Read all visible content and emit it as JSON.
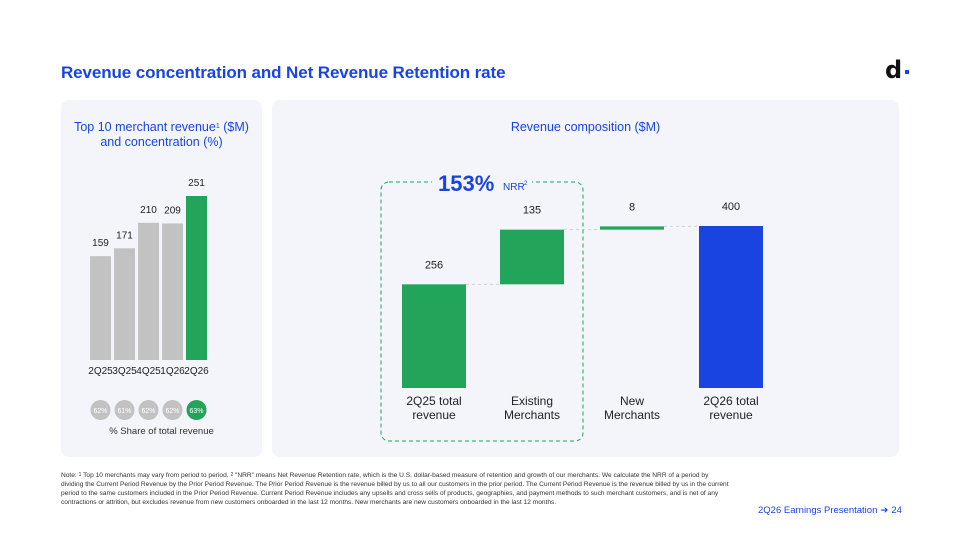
{
  "title": "Revenue concentration and Net Revenue Retention rate",
  "logo": {
    "letter": "d",
    "icon": "dlocal-logo-icon"
  },
  "colors": {
    "accent": "#1a44e0",
    "green": "#22a45a",
    "gray": "#c2c2c2",
    "dashed": "#22a45a"
  },
  "chart_data": [
    {
      "type": "bar",
      "title_parts": [
        "Top 10 merchant revenue",
        "1",
        " ($M)",
        "and concentration (%)"
      ],
      "categories": [
        "2Q25",
        "3Q25",
        "4Q25",
        "1Q26",
        "2Q26"
      ],
      "values": [
        159,
        171,
        210,
        209,
        251
      ],
      "highlight_index": 4,
      "concentration": [
        "62%",
        "61%",
        "62%",
        "62%",
        "63%"
      ],
      "concentration_label": "% Share of total revenue",
      "ylim": [
        0,
        251
      ]
    },
    {
      "type": "bar",
      "subtype": "waterfall",
      "title": "Revenue composition ($M)",
      "categories": [
        [
          "2Q25 total",
          "revenue"
        ],
        [
          "Existing",
          "Merchants"
        ],
        [
          "New",
          "Merchants"
        ],
        [
          "2Q26 total",
          "revenue"
        ]
      ],
      "values": [
        256,
        135,
        8,
        400
      ],
      "value_labels": [
        "256",
        "135",
        "8",
        "400"
      ],
      "kinds": [
        "total",
        "increment",
        "increment",
        "total"
      ],
      "ylim": [
        0,
        400
      ],
      "annotation": {
        "value": "153%",
        "label": "NRR",
        "sup": "2"
      }
    }
  ],
  "footnote": {
    "sup1": "1",
    "part1": " Top 10 merchants may vary from period to period.  ",
    "sup2": "2",
    "part2": " \"NRR\" means Net Revenue Retention rate, which is the U.S. dollar-based measure of retention and growth of our merchants. We calculate the NRR of a period by dividing the Current Period Revenue by the Prior Period Revenue. The Prior Period Revenue is the revenue billed by us to all our customers in the prior period. The Current Period Revenue is the revenue billed by us in the current period to the same customers included in the Prior Period Revenue. Current Period Revenue includes any upsells and cross sells of products, geographies, and payment methods to such merchant customers, and is net of any contractions or attrition, but excludes revenue from new customers onboarded in the last 12 months. New merchants are new customers onboarded in the last 12 months.",
    "prefix": "Note:"
  },
  "page_footer": {
    "text": "2Q26 Earnings Presentation",
    "page": "24"
  }
}
